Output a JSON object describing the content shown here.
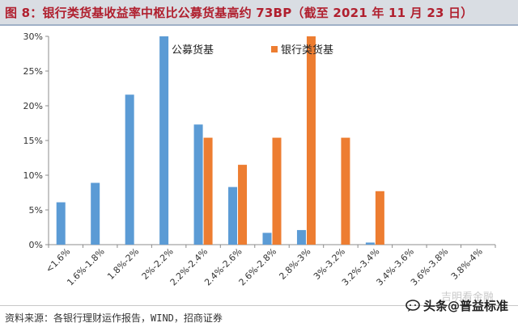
{
  "header": {
    "title": "图 8：银行类货基收益率中枢比公募货基高约 73BP（截至 2021 年 11 月 23 日）"
  },
  "footer": {
    "source": "资料来源：各银行理财运作报告，WIND，招商证券",
    "watermark_main": "头条@普益标准",
    "watermark_faint": "吉明看金融"
  },
  "colors": {
    "public_fund": "#5b9bd5",
    "bank_fund": "#ed7d31",
    "title_text": "#b01f2e",
    "title_bg": "#d9dde3"
  },
  "chart_data": {
    "type": "bar",
    "title": "",
    "xlabel": "",
    "ylabel": "",
    "ylim": [
      0,
      30
    ],
    "y_ticks": [
      "0%",
      "5%",
      "10%",
      "15%",
      "20%",
      "25%",
      "30%"
    ],
    "grid": false,
    "legend_position": "top-center",
    "categories": [
      "<1.6%",
      "1.6%-1.8%",
      "1.8%-2%",
      "2%-2.2%",
      "2.2%-2.4%",
      "2.4%-2.6%",
      "2.6%-2.8%",
      "2.8%-3%",
      "3%-3.2%",
      "3.2%-3.4%",
      "3.4%-3.6%",
      "3.6%-3.8%",
      "3.8%-4%"
    ],
    "series": [
      {
        "name": "公募货基",
        "values": [
          6.1,
          8.9,
          21.6,
          30.0,
          17.3,
          8.3,
          1.7,
          2.1,
          0,
          0.3,
          0,
          0,
          0
        ]
      },
      {
        "name": "银行类货基",
        "values": [
          0,
          0,
          0,
          0,
          15.4,
          11.5,
          15.4,
          30.0,
          15.4,
          7.7,
          0,
          0,
          0
        ]
      }
    ]
  }
}
